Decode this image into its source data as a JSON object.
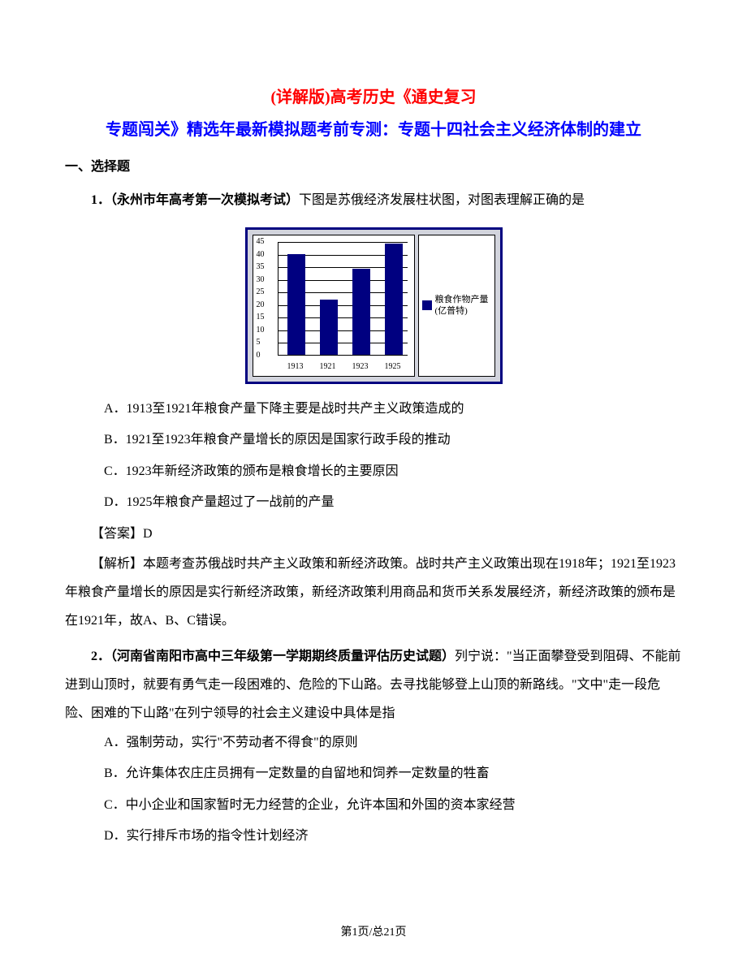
{
  "title": {
    "line1": "(详解版)高考历史《通史复习",
    "line2": "专题闯关》精选年最新模拟题考前专测：专题十四社会主义经济体制的建立"
  },
  "section_heading": "一、选择题",
  "q1": {
    "num_source": "1．（永州市年高考第一次模拟考试）",
    "stem": "下图是苏俄经济发展柱状图，对图表理解正确的是",
    "optA": "A．1913至1921年粮食产量下降主要是战时共产主义政策造成的",
    "optB": "B．1921至1923年粮食产量增长的原因是国家行政手段的推动",
    "optC": "C．1923年新经济政策的颁布是粮食增长的主要原因",
    "optD": "D．1925年粮食产量超过了一战前的产量",
    "answer_label": "【答案】",
    "answer_val": "D",
    "explain_label": "【解析】",
    "explain_body": "本题考查苏俄战时共产主义政策和新经济政策。战时共产主义政策出现在1918年；1921至1923年粮食产量增长的原因是实行新经济政策，新经济政策利用商品和货币关系发展经济，新经济政策的颁布是在1921年，故A、B、C错误。"
  },
  "q2": {
    "num_source": "2．（河南省南阳市高中三年级第一学期期终质量评估历史试题）",
    "stem": "列宁说：\"当正面攀登受到阻碍、不能前进到山顶时，就要有勇气走一段困难的、危险的下山路。去寻找能够登上山顶的新路线。\"文中\"走一段危险、困难的下山路\"在列宁领导的社会主义建设中具体是指",
    "optA": "A．强制劳动，实行\"不劳动者不得食\"的原则",
    "optB": "B．允许集体农庄庄员拥有一定数量的自留地和饲养一定数量的牲畜",
    "optC": "C．中小企业和国家暂时无力经营的企业，允许本国和外国的资本家经营",
    "optD": "D．实行排斥市场的指令性计划经济"
  },
  "chart": {
    "type": "bar",
    "categories": [
      "1913",
      "1921",
      "1923",
      "1925"
    ],
    "values": [
      40,
      22,
      34,
      44
    ],
    "ymax": 45,
    "ystep": 5,
    "bar_color": "#000080",
    "grid_color": "#000000",
    "panel_bg": "#d2d4dd",
    "plot_bg": "#ffffff",
    "legend_l1": "粮食作物产量",
    "legend_l2": "(亿普特)"
  },
  "footer": {
    "page_cur": "1",
    "page_total": "21",
    "prefix": "第",
    "mid": "页/总",
    "suffix": "页"
  }
}
